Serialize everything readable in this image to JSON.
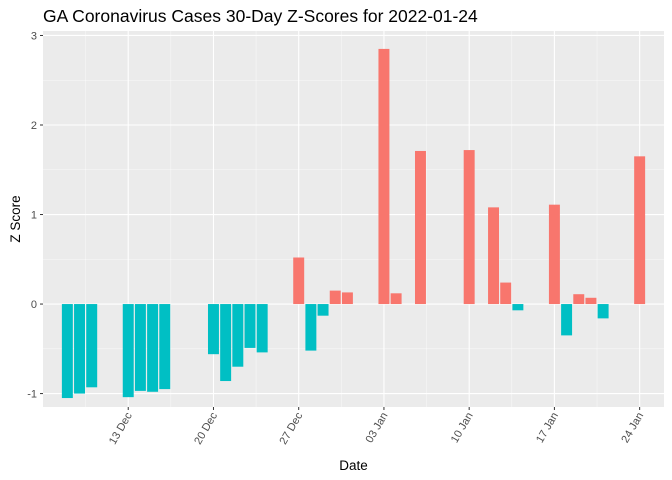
{
  "chart_data": {
    "type": "bar",
    "title": "GA Coronavirus Cases 30-Day Z-Scores for 2022-01-24",
    "xlabel": "Date",
    "ylabel": "Z Score",
    "ylim": [
      -1.15,
      3.05
    ],
    "x_range": [
      "2021-12-06",
      "2022-01-26"
    ],
    "y_ticks": [
      -1,
      0,
      1,
      2,
      3
    ],
    "x_ticks": [
      {
        "date": "2021-12-13",
        "label": "13 Dec"
      },
      {
        "date": "2021-12-20",
        "label": "20 Dec"
      },
      {
        "date": "2021-12-27",
        "label": "27 Dec"
      },
      {
        "date": "2022-01-03",
        "label": "03 Jan"
      },
      {
        "date": "2022-01-10",
        "label": "10 Jan"
      },
      {
        "date": "2022-01-17",
        "label": "17 Jan"
      },
      {
        "date": "2022-01-24",
        "label": "24 Jan"
      }
    ],
    "colors": {
      "positive": "#F8766D",
      "negative": "#00BFC4",
      "panel": "#EBEBEB",
      "grid_major": "#FFFFFF"
    },
    "grid": true,
    "legend": "none",
    "points": [
      {
        "date": "2021-12-08",
        "value": -1.05
      },
      {
        "date": "2021-12-09",
        "value": -1.0
      },
      {
        "date": "2021-12-10",
        "value": -0.93
      },
      {
        "date": "2021-12-13",
        "value": -1.04
      },
      {
        "date": "2021-12-14",
        "value": -0.97
      },
      {
        "date": "2021-12-15",
        "value": -0.98
      },
      {
        "date": "2021-12-16",
        "value": -0.95
      },
      {
        "date": "2021-12-20",
        "value": -0.56
      },
      {
        "date": "2021-12-21",
        "value": -0.86
      },
      {
        "date": "2021-12-22",
        "value": -0.7
      },
      {
        "date": "2021-12-23",
        "value": -0.49
      },
      {
        "date": "2021-12-24",
        "value": -0.54
      },
      {
        "date": "2021-12-27",
        "value": 0.52
      },
      {
        "date": "2021-12-28",
        "value": -0.52
      },
      {
        "date": "2021-12-29",
        "value": -0.13
      },
      {
        "date": "2021-12-30",
        "value": 0.15
      },
      {
        "date": "2021-12-31",
        "value": 0.13
      },
      {
        "date": "2022-01-03",
        "value": 2.85
      },
      {
        "date": "2022-01-04",
        "value": 0.12
      },
      {
        "date": "2022-01-06",
        "value": 1.71
      },
      {
        "date": "2022-01-10",
        "value": 1.72
      },
      {
        "date": "2022-01-12",
        "value": 1.08
      },
      {
        "date": "2022-01-13",
        "value": 0.24
      },
      {
        "date": "2022-01-14",
        "value": -0.07
      },
      {
        "date": "2022-01-17",
        "value": 1.11
      },
      {
        "date": "2022-01-18",
        "value": -0.35
      },
      {
        "date": "2022-01-19",
        "value": 0.11
      },
      {
        "date": "2022-01-20",
        "value": 0.07
      },
      {
        "date": "2022-01-21",
        "value": -0.16
      },
      {
        "date": "2022-01-24",
        "value": 1.65
      }
    ]
  }
}
